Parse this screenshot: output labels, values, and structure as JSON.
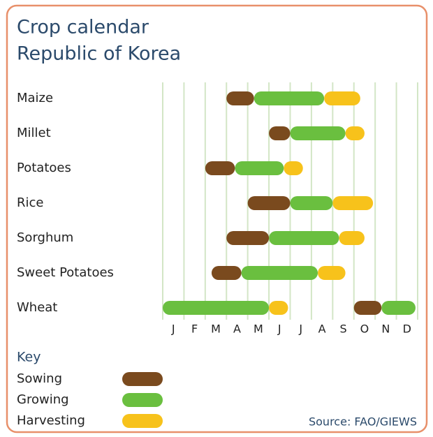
{
  "chart_data": {
    "type": "gantt",
    "title": "Crop calendar",
    "subtitle": "Republic of Korea",
    "crops": [
      "Maize",
      "Millet",
      "Potatoes",
      "Rice",
      "Sorghum",
      "Sweet Potatoes",
      "Wheat"
    ],
    "categories": [
      "J",
      "F",
      "M",
      "A",
      "M",
      "J",
      "J",
      "A",
      "S",
      "O",
      "N",
      "D"
    ],
    "xlim": [
      0,
      12
    ],
    "grid": true,
    "legend_title": "Key",
    "series": [
      {
        "name": "Sowing",
        "color": "#7a4a1e",
        "values": [
          [
            [
              3,
              4.3
            ]
          ],
          [
            [
              5,
              6
            ]
          ],
          [
            [
              2,
              3.4
            ]
          ],
          [
            [
              4,
              6
            ]
          ],
          [
            [
              3,
              5
            ]
          ],
          [
            [
              2.3,
              3.7
            ]
          ],
          [
            [
              9,
              10.3
            ]
          ]
        ]
      },
      {
        "name": "Growing",
        "color": "#6abf3f",
        "values": [
          [
            [
              4.3,
              7.6
            ]
          ],
          [
            [
              6,
              8.6
            ]
          ],
          [
            [
              3.4,
              5.7
            ]
          ],
          [
            [
              6,
              8
            ]
          ],
          [
            [
              5,
              8.3
            ]
          ],
          [
            [
              3.7,
              7.3
            ]
          ],
          [
            [
              0,
              5
            ],
            [
              10.3,
              11.9
            ]
          ]
        ]
      },
      {
        "name": "Harvesting",
        "color": "#f7c21b",
        "values": [
          [
            [
              7.6,
              9.3
            ]
          ],
          [
            [
              8.6,
              9.5
            ]
          ],
          [
            [
              5.7,
              6.6
            ]
          ],
          [
            [
              8,
              9.9
            ]
          ],
          [
            [
              8.3,
              9.5
            ]
          ],
          [
            [
              7.3,
              8.6
            ]
          ],
          [
            [
              5,
              5.9
            ]
          ]
        ]
      }
    ],
    "source": "Source: FAO/GIEWS"
  }
}
